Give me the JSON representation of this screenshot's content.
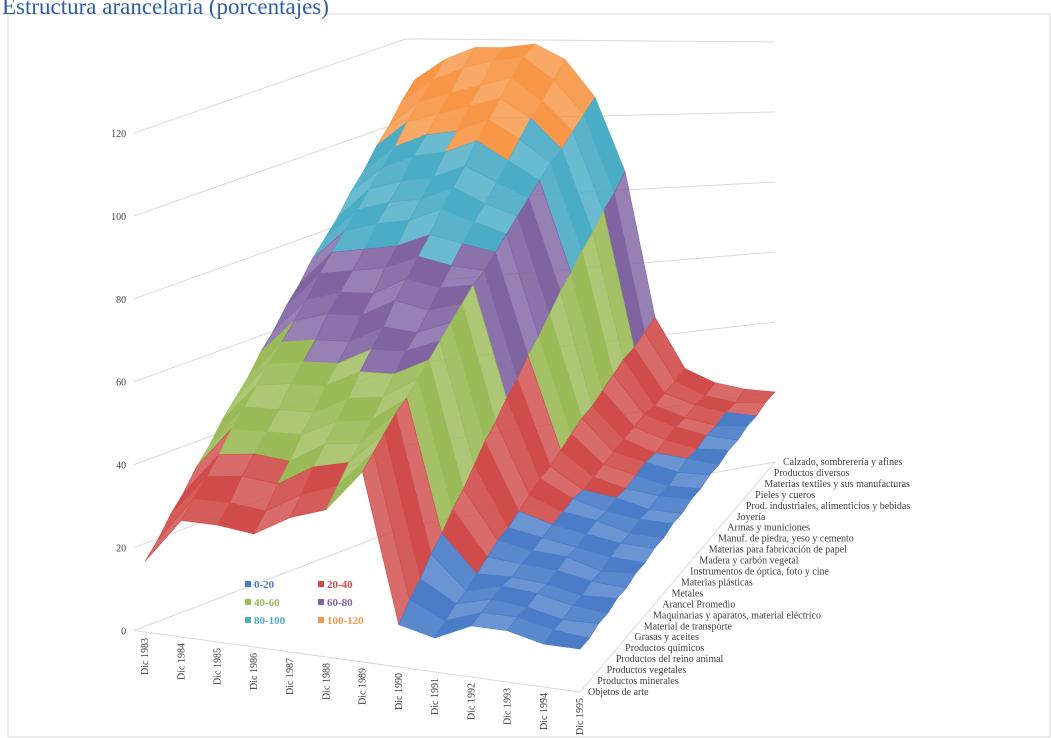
{
  "chart_data": {
    "type": "surface",
    "title": "Estructura arancelaria (porcentajes)",
    "x": [
      "Dic 1983",
      "Dic 1984",
      "Dic 1985",
      "Dic 1986",
      "Dic 1987",
      "Dic 1988",
      "Dic 1989",
      "Dic 1990",
      "Dic 1991",
      "Dic 1992",
      "Dic 1993",
      "Dic 1994",
      "Dic 1995"
    ],
    "ylim": [
      0,
      120
    ],
    "yticks": [
      0,
      20,
      40,
      60,
      80,
      100,
      120
    ],
    "grid": true,
    "legend_position": "lower-left",
    "legend": [
      {
        "label": "0-20",
        "color": "#4a7cc8"
      },
      {
        "label": "20-40",
        "color": "#d04c4a"
      },
      {
        "label": "40-60",
        "color": "#9bbb59"
      },
      {
        "label": "60-80",
        "color": "#8064a2"
      },
      {
        "label": "80-100",
        "color": "#4bacc6"
      },
      {
        "label": "100-120",
        "color": "#f79646"
      }
    ],
    "series": [
      {
        "name": "Objetos de arte",
        "values": [
          17,
          28,
          28,
          27,
          32,
          35,
          45,
          10,
          8,
          12,
          12,
          10,
          10
        ]
      },
      {
        "name": "Productos minerales",
        "values": [
          21,
          32,
          32,
          31,
          36,
          39,
          48,
          14,
          10,
          13,
          13,
          11,
          10
        ]
      },
      {
        "name": "Productos vegetales",
        "values": [
          26,
          36,
          37,
          36,
          41,
          43,
          51,
          17,
          12,
          14,
          13,
          11,
          11
        ]
      },
      {
        "name": "Productos del reino animal",
        "values": [
          30,
          40,
          41,
          40,
          45,
          46,
          54,
          21,
          13,
          15,
          14,
          12,
          11
        ]
      },
      {
        "name": "Productos químicos",
        "values": [
          35,
          45,
          45,
          45,
          49,
          50,
          56,
          24,
          15,
          15,
          14,
          12,
          12
        ]
      },
      {
        "name": "Grasas y aceites",
        "values": [
          39,
          49,
          49,
          49,
          53,
          54,
          59,
          28,
          17,
          16,
          15,
          13,
          12
        ]
      },
      {
        "name": "Material de transporte",
        "values": [
          44,
          53,
          54,
          54,
          58,
          58,
          62,
          31,
          19,
          17,
          16,
          13,
          13
        ]
      },
      {
        "name": "Maquinarias y aparatos, material eléctrico",
        "values": [
          48,
          57,
          58,
          58,
          62,
          62,
          65,
          35,
          20,
          18,
          16,
          14,
          13
        ]
      },
      {
        "name": "Arancel Promedio",
        "values": [
          52,
          61,
          62,
          62,
          66,
          65,
          68,
          39,
          22,
          19,
          17,
          15,
          14
        ]
      },
      {
        "name": "Metales",
        "values": [
          57,
          65,
          67,
          67,
          71,
          69,
          71,
          42,
          24,
          20,
          18,
          15,
          14
        ]
      },
      {
        "name": "Materias plásticas",
        "values": [
          61,
          69,
          71,
          71,
          75,
          73,
          74,
          46,
          26,
          21,
          18,
          16,
          15
        ]
      },
      {
        "name": "Instrumentos de óptica, foto y cine",
        "values": [
          66,
          74,
          75,
          76,
          79,
          77,
          76,
          49,
          27,
          21,
          19,
          16,
          15
        ]
      },
      {
        "name": "Madera y carbón vegetal",
        "values": [
          70,
          78,
          79,
          80,
          83,
          81,
          79,
          53,
          29,
          22,
          19,
          17,
          16
        ]
      },
      {
        "name": "Materias para fabricación de papel",
        "values": [
          75,
          82,
          84,
          85,
          88,
          85,
          82,
          56,
          31,
          23,
          20,
          17,
          16
        ]
      },
      {
        "name": "Manuf. de piedra, yeso y cemento",
        "values": [
          79,
          86,
          88,
          89,
          92,
          88,
          85,
          60,
          33,
          24,
          21,
          18,
          17
        ]
      },
      {
        "name": "Armas y municiones",
        "values": [
          83,
          90,
          92,
          93,
          96,
          92,
          88,
          64,
          34,
          25,
          21,
          19,
          17
        ]
      },
      {
        "name": "Joyería",
        "values": [
          88,
          94,
          97,
          98,
          101,
          96,
          91,
          67,
          36,
          26,
          22,
          19,
          18
        ]
      },
      {
        "name": "Prod. industriales, alimenticios y bebidas",
        "values": [
          92,
          98,
          101,
          102,
          105,
          100,
          94,
          71,
          38,
          27,
          23,
          20,
          18
        ]
      },
      {
        "name": "Pieles y cueros",
        "values": [
          97,
          103,
          105,
          107,
          109,
          104,
          96,
          74,
          40,
          27,
          23,
          20,
          19
        ]
      },
      {
        "name": "Materias textiles y sus manufacturas",
        "values": [
          101,
          107,
          109,
          111,
          113,
          107,
          99,
          78,
          41,
          28,
          24,
          21,
          19
        ]
      },
      {
        "name": "Productos diversos",
        "values": [
          106,
          111,
          114,
          116,
          117,
          111,
          102,
          81,
          43,
          29,
          24,
          21,
          20
        ]
      },
      {
        "name": "Calzado, sombrerería y afines",
        "values": [
          110,
          115,
          118,
          118,
          119,
          115,
          105,
          85,
          45,
          30,
          25,
          22,
          20
        ]
      }
    ]
  }
}
